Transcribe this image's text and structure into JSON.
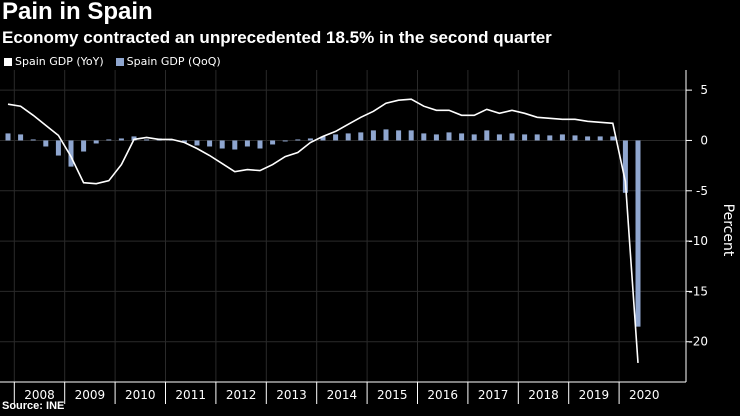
{
  "title": "Pain in Spain",
  "subtitle": "Economy contracted an unprecedented 18.5% in the second quarter",
  "source": "Source: INE",
  "colors": {
    "yoy": "#ffffff",
    "qoq": "#8fa6cf",
    "background": "#000000",
    "grid": "#2a2a2a"
  },
  "legend": {
    "yoy_label": "Spain GDP (YoY)",
    "qoq_label": "Spain GDP (QoQ)"
  },
  "chart_data": {
    "type": "bar",
    "title": "Pain in Spain",
    "subtitle": "Economy contracted an unprecedented 18.5% in the second quarter",
    "ylabel": "Percent",
    "xlabel": "",
    "ylim": [
      -24,
      7
    ],
    "yticks": [
      5,
      0,
      -5,
      -10,
      -15,
      -20
    ],
    "years": [
      "2008",
      "2009",
      "2010",
      "2011",
      "2012",
      "2013",
      "2014",
      "2015",
      "2016",
      "2017",
      "2018",
      "2019",
      "2020"
    ],
    "categories": [
      "2007Q4",
      "2008Q1",
      "2008Q2",
      "2008Q3",
      "2008Q4",
      "2009Q1",
      "2009Q2",
      "2009Q3",
      "2009Q4",
      "2010Q1",
      "2010Q2",
      "2010Q3",
      "2010Q4",
      "2011Q1",
      "2011Q2",
      "2011Q3",
      "2011Q4",
      "2012Q1",
      "2012Q2",
      "2012Q3",
      "2012Q4",
      "2013Q1",
      "2013Q2",
      "2013Q3",
      "2013Q4",
      "2014Q1",
      "2014Q2",
      "2014Q3",
      "2014Q4",
      "2015Q1",
      "2015Q2",
      "2015Q3",
      "2015Q4",
      "2016Q1",
      "2016Q2",
      "2016Q3",
      "2016Q4",
      "2017Q1",
      "2017Q2",
      "2017Q3",
      "2017Q4",
      "2018Q1",
      "2018Q2",
      "2018Q3",
      "2018Q4",
      "2019Q1",
      "2019Q2",
      "2019Q3",
      "2019Q4",
      "2020Q1",
      "2020Q2"
    ],
    "series": [
      {
        "name": "Spain GDP (QoQ)",
        "type": "bar",
        "values": [
          0.7,
          0.6,
          0.1,
          -0.6,
          -1.5,
          -2.6,
          -1.1,
          -0.3,
          0.1,
          0.2,
          0.4,
          0.1,
          0.2,
          0.1,
          -0.2,
          -0.5,
          -0.6,
          -0.8,
          -0.9,
          -0.6,
          -0.8,
          -0.4,
          -0.1,
          0.1,
          0.2,
          0.4,
          0.6,
          0.7,
          0.8,
          1.0,
          1.1,
          1.0,
          1.0,
          0.7,
          0.6,
          0.8,
          0.7,
          0.6,
          1.0,
          0.6,
          0.7,
          0.6,
          0.6,
          0.5,
          0.6,
          0.5,
          0.4,
          0.4,
          0.4,
          -5.2,
          -18.5
        ]
      },
      {
        "name": "Spain GDP (YoY)",
        "type": "line",
        "values": [
          3.6,
          3.4,
          2.5,
          1.5,
          0.5,
          -1.6,
          -4.2,
          -4.3,
          -4.0,
          -2.4,
          0.1,
          0.3,
          0.1,
          0.1,
          -0.2,
          -0.8,
          -1.5,
          -2.3,
          -3.1,
          -2.9,
          -3.0,
          -2.4,
          -1.6,
          -1.2,
          -0.2,
          0.4,
          0.9,
          1.6,
          2.3,
          2.9,
          3.7,
          4.0,
          4.1,
          3.4,
          3.0,
          3.0,
          2.5,
          2.5,
          3.1,
          2.7,
          3.0,
          2.7,
          2.3,
          2.2,
          2.1,
          2.1,
          1.9,
          1.8,
          1.7,
          -4.1,
          -22.1
        ]
      }
    ]
  }
}
